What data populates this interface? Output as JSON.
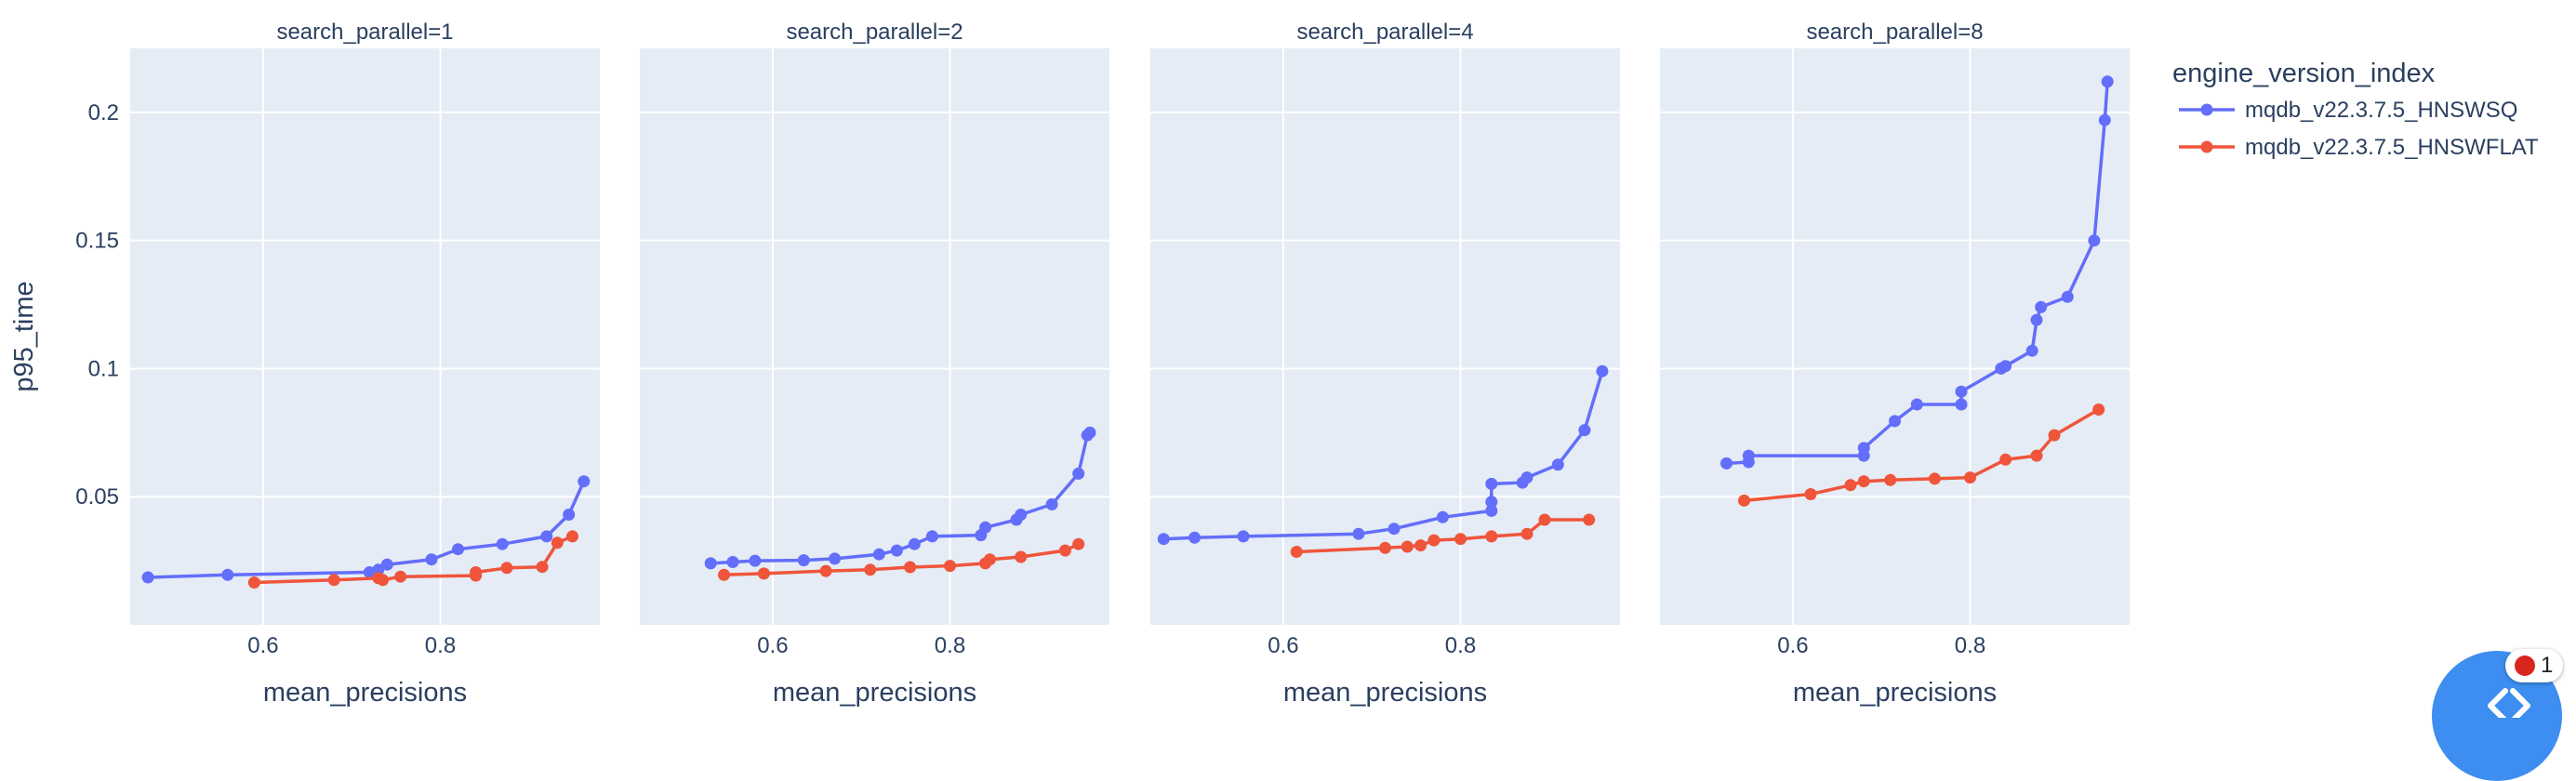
{
  "chart_data": {
    "type": "line",
    "ylabel": "p95_time",
    "xlabel": "mean_precisions",
    "legend_title": "engine_version_index",
    "legend_position": "top-right",
    "grid": true,
    "xlim": [
      0.45,
      0.98
    ],
    "ylim": [
      0.0,
      0.225
    ],
    "xticks": [
      0.6,
      0.8
    ],
    "yticks": [
      0.05,
      0.1,
      0.15,
      0.2
    ],
    "series_colors": [
      "#636efa",
      "#ef553b"
    ],
    "series_names": [
      "mqdb_v22.3.7.5_HNSWSQ",
      "mqdb_v22.3.7.5_HNSWFLAT"
    ],
    "panels": [
      {
        "title": "search_parallel=1",
        "series": [
          {
            "name": "mqdb_v22.3.7.5_HNSWSQ",
            "x": [
              0.47,
              0.56,
              0.72,
              0.73,
              0.74,
              0.79,
              0.82,
              0.87,
              0.92,
              0.945,
              0.962
            ],
            "y": [
              0.0185,
              0.0195,
              0.0205,
              0.0215,
              0.0235,
              0.0255,
              0.0295,
              0.0315,
              0.0345,
              0.043,
              0.056
            ]
          },
          {
            "name": "mqdb_v22.3.7.5_HNSWFLAT",
            "x": [
              0.59,
              0.68,
              0.73,
              0.735,
              0.755,
              0.84,
              0.84,
              0.875,
              0.915,
              0.932,
              0.949
            ],
            "y": [
              0.0165,
              0.0175,
              0.0182,
              0.0175,
              0.0188,
              0.0192,
              0.0205,
              0.0222,
              0.0226,
              0.032,
              0.0345
            ]
          }
        ]
      },
      {
        "title": "search_parallel=2",
        "series": [
          {
            "name": "mqdb_v22.3.7.5_HNSWSQ",
            "x": [
              0.53,
              0.555,
              0.58,
              0.635,
              0.67,
              0.72,
              0.74,
              0.76,
              0.78,
              0.835,
              0.84,
              0.875,
              0.88,
              0.915,
              0.945,
              0.955,
              0.958
            ],
            "y": [
              0.024,
              0.0245,
              0.025,
              0.0252,
              0.0258,
              0.0275,
              0.029,
              0.0315,
              0.0345,
              0.035,
              0.038,
              0.041,
              0.043,
              0.047,
              0.059,
              0.074,
              0.075
            ]
          },
          {
            "name": "mqdb_v22.3.7.5_HNSWFLAT",
            "x": [
              0.545,
              0.59,
              0.66,
              0.71,
              0.755,
              0.8,
              0.84,
              0.845,
              0.88,
              0.93,
              0.945
            ],
            "y": [
              0.0195,
              0.02,
              0.021,
              0.0215,
              0.0225,
              0.023,
              0.024,
              0.0255,
              0.0265,
              0.029,
              0.0315
            ]
          }
        ]
      },
      {
        "title": "search_parallel=4",
        "series": [
          {
            "name": "mqdb_v22.3.7.5_HNSWSQ",
            "x": [
              0.465,
              0.5,
              0.555,
              0.685,
              0.725,
              0.78,
              0.835,
              0.835,
              0.835,
              0.87,
              0.875,
              0.91,
              0.94,
              0.96
            ],
            "y": [
              0.0335,
              0.034,
              0.0345,
              0.0355,
              0.0375,
              0.042,
              0.0445,
              0.048,
              0.055,
              0.0555,
              0.0575,
              0.0625,
              0.076,
              0.099
            ]
          },
          {
            "name": "mqdb_v22.3.7.5_HNSWFLAT",
            "x": [
              0.615,
              0.715,
              0.74,
              0.755,
              0.77,
              0.8,
              0.835,
              0.875,
              0.895,
              0.945
            ],
            "y": [
              0.0285,
              0.03,
              0.0305,
              0.031,
              0.033,
              0.0335,
              0.0345,
              0.0355,
              0.041,
              0.041
            ]
          }
        ]
      },
      {
        "title": "search_parallel=8",
        "series": [
          {
            "name": "mqdb_v22.3.7.5_HNSWSQ",
            "x": [
              0.525,
              0.55,
              0.55,
              0.68,
              0.68,
              0.715,
              0.74,
              0.79,
              0.79,
              0.835,
              0.84,
              0.87,
              0.875,
              0.88,
              0.91,
              0.94,
              0.952,
              0.955
            ],
            "y": [
              0.063,
              0.0635,
              0.066,
              0.066,
              0.069,
              0.0795,
              0.086,
              0.086,
              0.091,
              0.1,
              0.101,
              0.107,
              0.119,
              0.124,
              0.128,
              0.15,
              0.197,
              0.212
            ]
          },
          {
            "name": "mqdb_v22.3.7.5_HNSWFLAT",
            "x": [
              0.545,
              0.62,
              0.665,
              0.68,
              0.71,
              0.76,
              0.8,
              0.84,
              0.875,
              0.895,
              0.945
            ],
            "y": [
              0.0485,
              0.051,
              0.0545,
              0.056,
              0.0565,
              0.057,
              0.0575,
              0.0645,
              0.066,
              0.074,
              0.084
            ]
          }
        ]
      }
    ]
  },
  "notification": {
    "count": "1"
  },
  "icons": {
    "fab": "code-chevrons-icon",
    "badge": "error-dot-icon"
  }
}
